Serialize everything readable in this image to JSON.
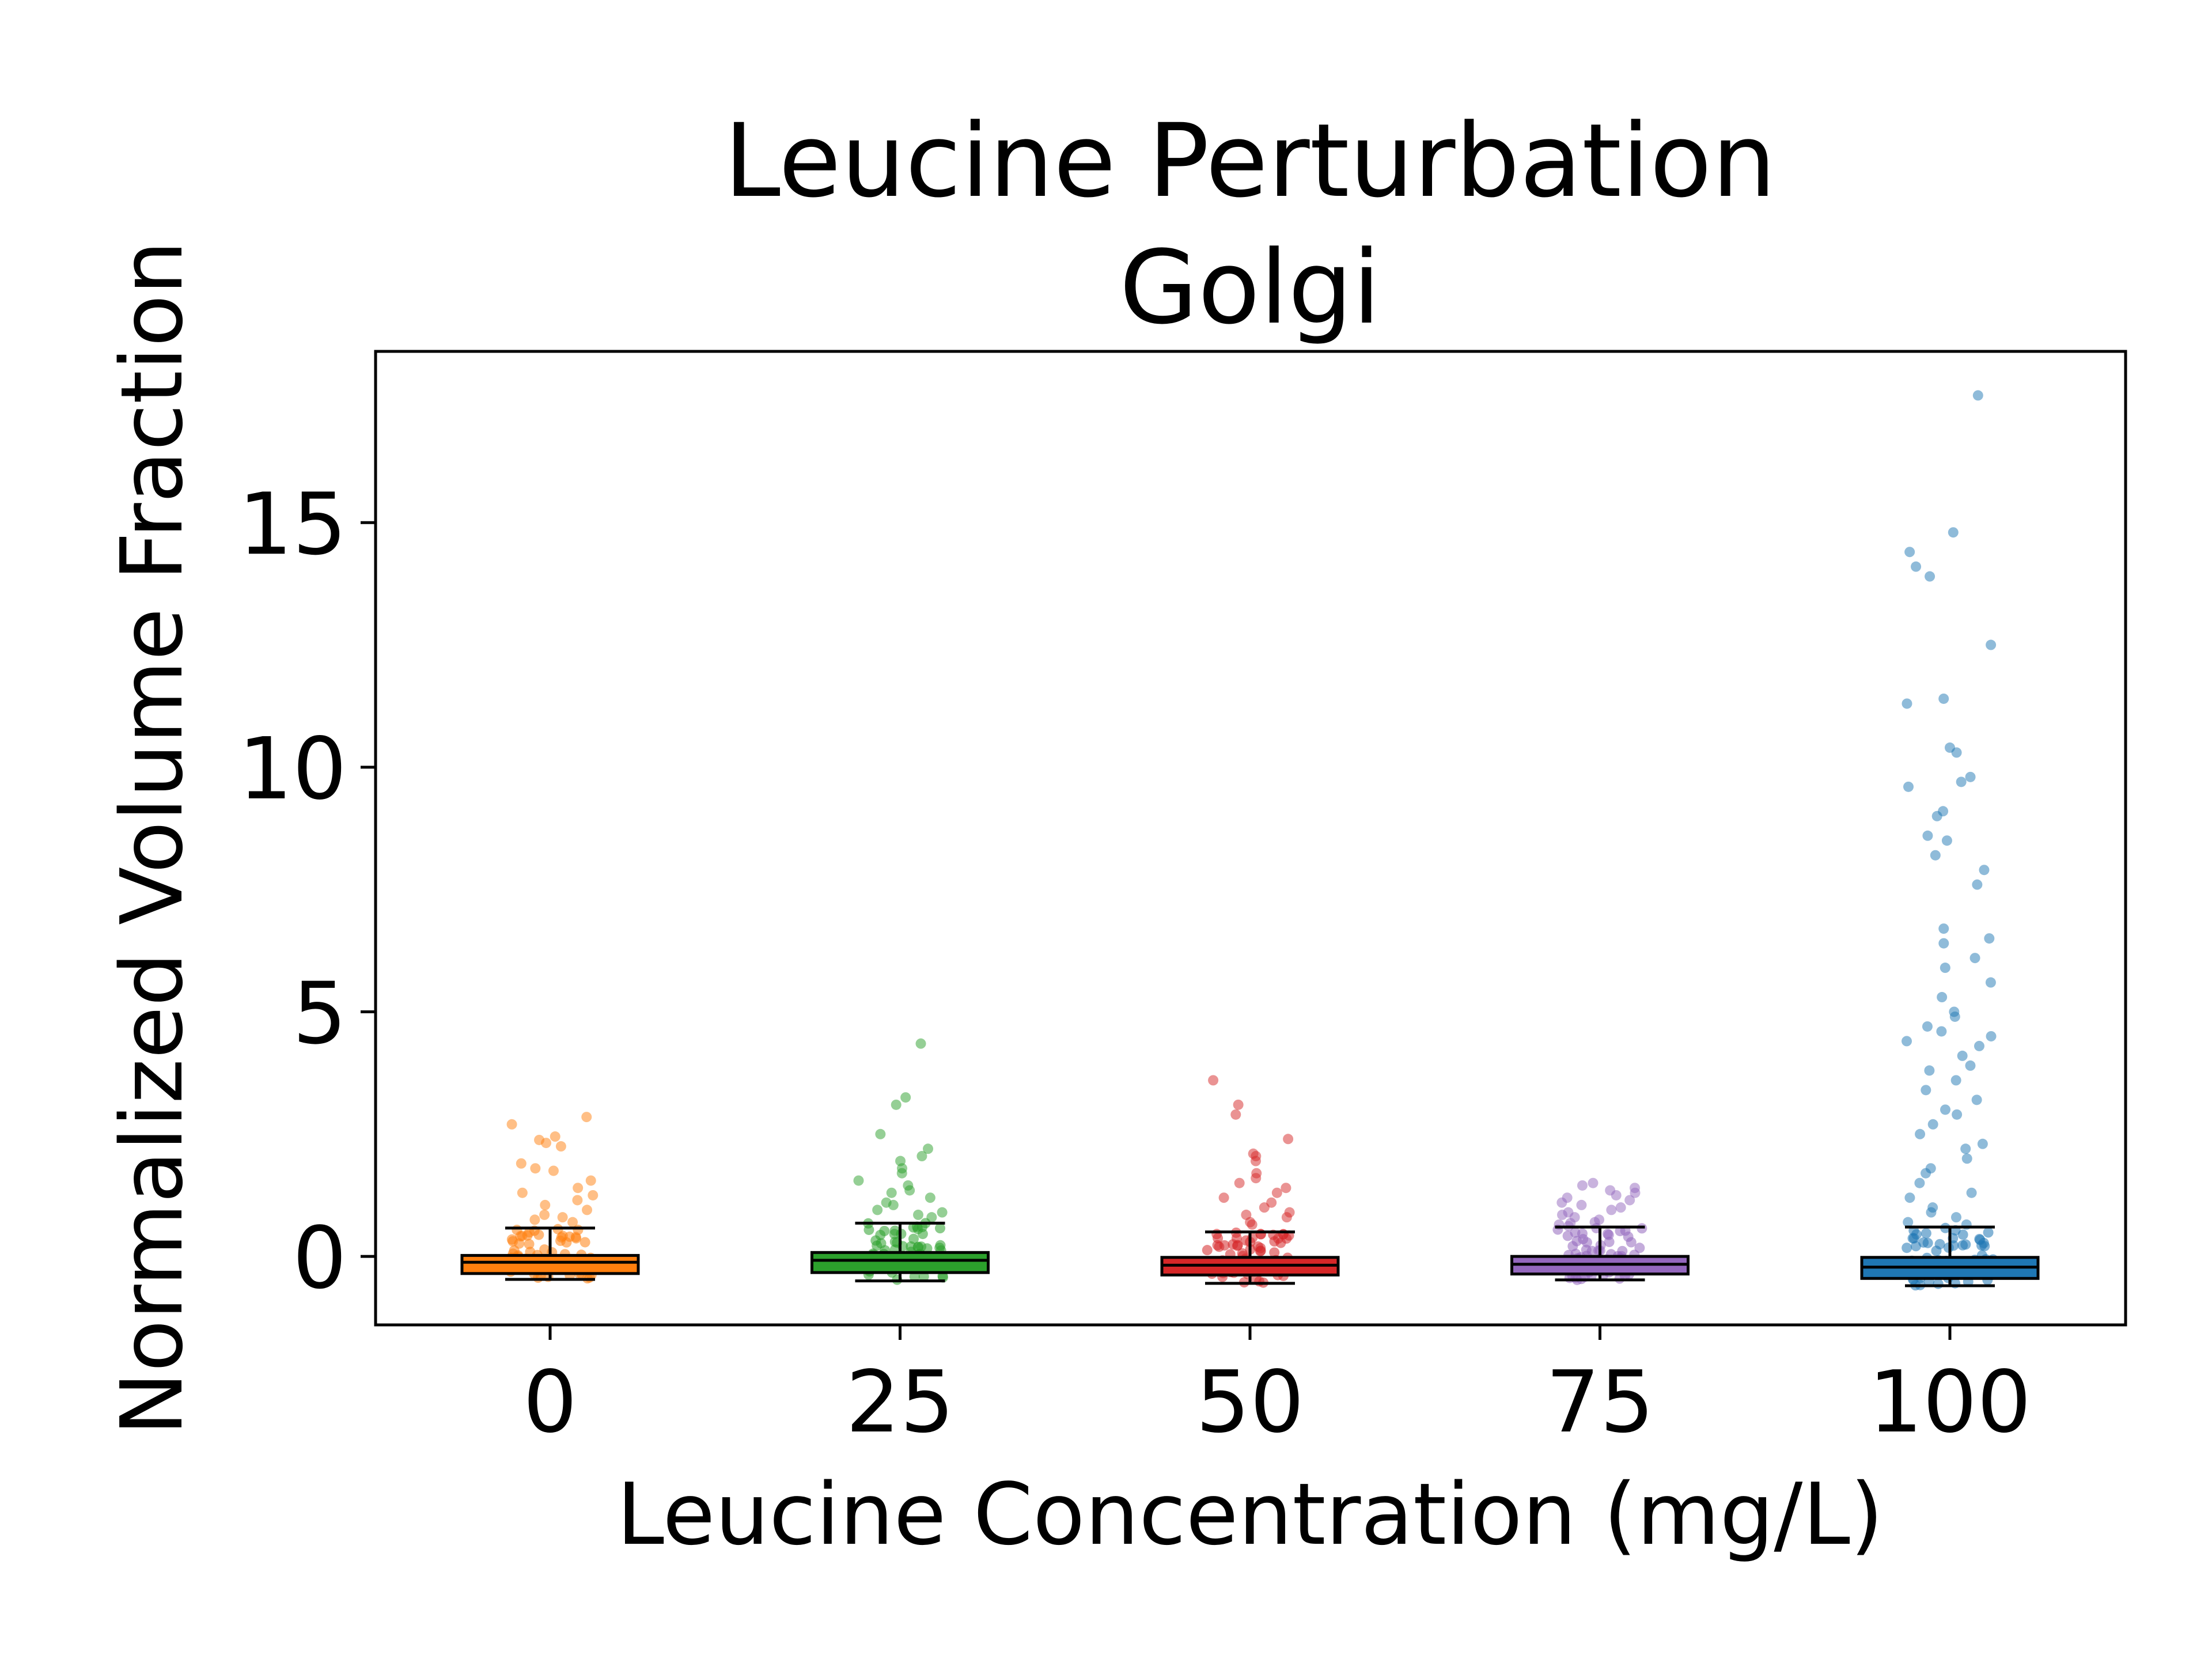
{
  "chart_data": {
    "type": "box",
    "title": "Leucine Perturbation",
    "subtitle": "Golgi",
    "xlabel": "Leucine Concentration (mg/L)",
    "ylabel": "Normalized Volume Fraction",
    "categories": [
      "0",
      "25",
      "50",
      "75",
      "100"
    ],
    "yticks": [
      0,
      5,
      10,
      15
    ],
    "ytick_labels": [
      "0",
      "5",
      "10",
      "15"
    ],
    "ylim": [
      -1.4,
      18.5
    ],
    "grid": false,
    "legend": "none",
    "series": [
      {
        "category": "0",
        "color": "#ff7f0e",
        "q1": -0.35,
        "median": -0.12,
        "q3": 0.02,
        "whisker_low": -0.47,
        "whisker_high": 0.58,
        "points": [
          2.85,
          2.7,
          2.45,
          2.38,
          2.32,
          2.25,
          1.9,
          1.8,
          1.75,
          1.55,
          1.4,
          1.3,
          1.25,
          1.15,
          1.05,
          0.95,
          0.85,
          0.8,
          0.75,
          0.7
        ]
      },
      {
        "category": "25",
        "color": "#2ca02c",
        "q1": -0.33,
        "median": -0.08,
        "q3": 0.08,
        "whisker_low": -0.5,
        "whisker_high": 0.68,
        "points": [
          4.35,
          3.25,
          3.1,
          2.5,
          2.2,
          2.05,
          1.95,
          1.8,
          1.7,
          1.55,
          1.45,
          1.35,
          1.3,
          1.2,
          1.1,
          1.05,
          0.95,
          0.9,
          0.85,
          0.8
        ]
      },
      {
        "category": "50",
        "color": "#d62728",
        "q1": -0.38,
        "median": -0.18,
        "q3": -0.02,
        "whisker_low": -0.55,
        "whisker_high": 0.5,
        "points": [
          3.6,
          3.1,
          2.9,
          2.4,
          2.1,
          2.05,
          1.95,
          1.7,
          1.6,
          1.5,
          1.4,
          1.3,
          1.2,
          1.1,
          1.0,
          0.9,
          0.85,
          0.8,
          0.7,
          0.65
        ]
      },
      {
        "category": "75",
        "color": "#9467bd",
        "q1": -0.36,
        "median": -0.16,
        "q3": 0.0,
        "whisker_low": -0.48,
        "whisker_high": 0.6,
        "points": [
          1.5,
          1.45,
          1.4,
          1.35,
          1.3,
          1.25,
          1.2,
          1.15,
          1.1,
          1.05,
          1.0,
          0.95,
          0.9,
          0.85,
          0.8,
          0.75,
          0.7,
          0.68,
          0.65,
          0.62
        ]
      },
      {
        "category": "100",
        "color": "#1f77b4",
        "q1": -0.45,
        "median": -0.22,
        "q3": -0.02,
        "whisker_low": -0.6,
        "whisker_high": 0.6,
        "points": [
          17.6,
          14.8,
          14.4,
          14.1,
          13.9,
          12.5,
          11.4,
          11.3,
          10.4,
          10.3,
          9.8,
          9.7,
          9.6,
          9.1,
          9.0,
          8.6,
          8.5,
          8.2,
          7.9,
          7.6,
          6.7,
          6.5,
          6.4,
          6.1,
          5.9,
          5.6,
          5.3,
          5.0,
          4.9,
          4.7,
          4.6,
          4.5,
          4.4,
          4.3,
          4.1,
          3.9,
          3.8,
          3.6,
          3.4,
          3.2,
          3.0,
          2.9,
          2.7,
          2.5,
          2.3,
          2.2,
          2.0,
          1.8,
          1.7,
          1.5,
          1.3,
          1.2,
          1.0,
          0.9,
          0.8,
          0.7,
          0.65
        ]
      }
    ]
  }
}
